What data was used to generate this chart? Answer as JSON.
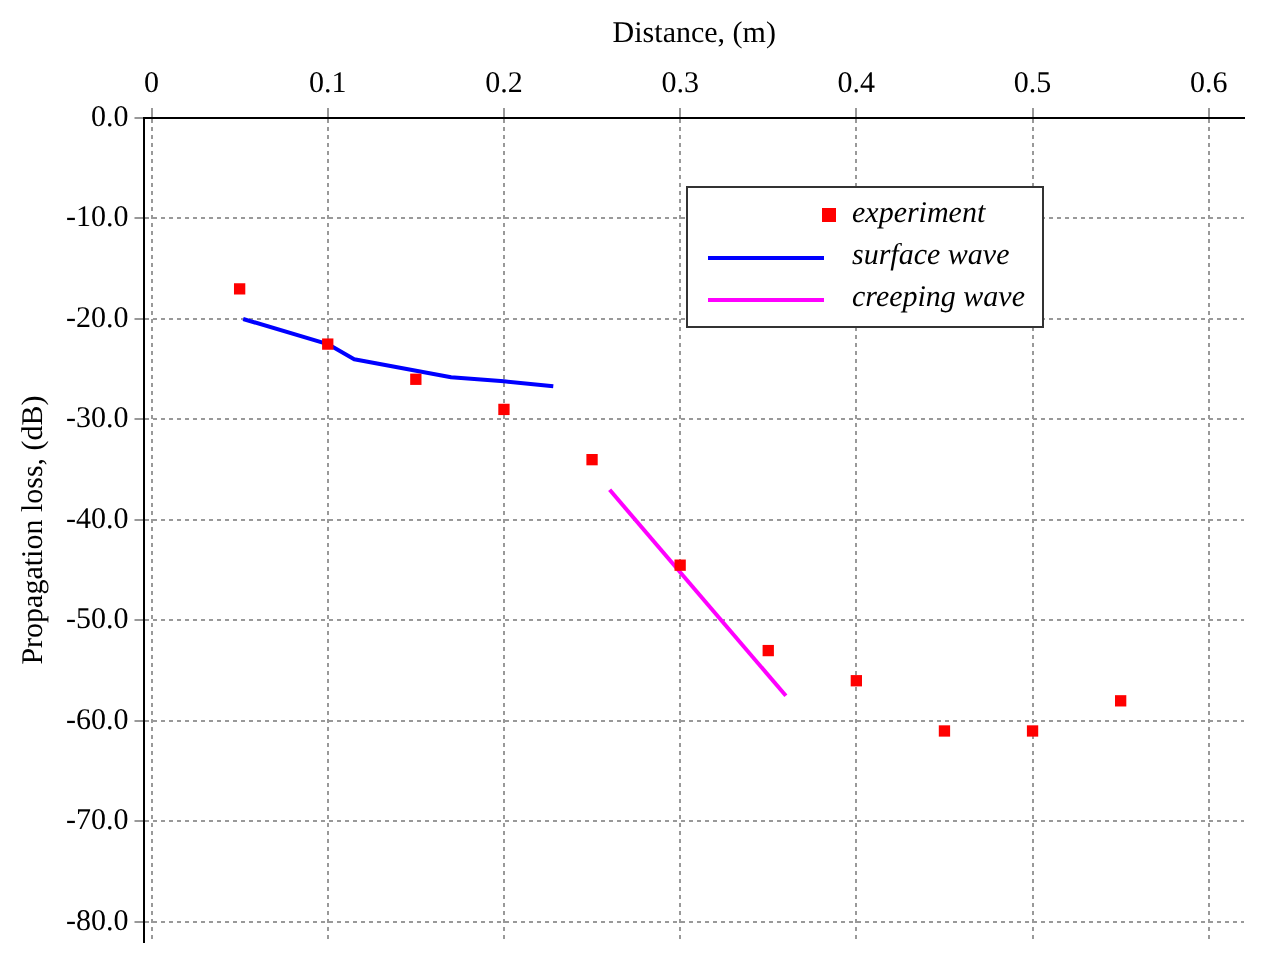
{
  "chart_data": {
    "type": "scatter",
    "xlabel": "Distance, (m)",
    "ylabel": "Propagation loss, (dB)",
    "xlim": [
      -0.004,
      0.62
    ],
    "xticks": [
      0,
      0.1,
      0.2,
      0.3,
      0.4,
      0.5,
      0.6
    ],
    "ylim": [
      -82,
      0
    ],
    "yticks": [
      {
        "value": 0,
        "label": "0.0"
      },
      {
        "value": -10,
        "label": "-10.0"
      },
      {
        "value": -20,
        "label": "-20.0"
      },
      {
        "value": -30,
        "label": "-30.0"
      },
      {
        "value": -40,
        "label": "-40.0"
      },
      {
        "value": -50,
        "label": "-50.0"
      },
      {
        "value": -60,
        "label": "-60.0"
      },
      {
        "value": -70,
        "label": "-70.0"
      },
      {
        "value": -80,
        "label": "-80.0"
      }
    ],
    "grid": true,
    "legend": "top right",
    "series": [
      {
        "name": "experiment",
        "type": "scatter",
        "marker": "square",
        "color": "#ff0000",
        "x": [
          0.05,
          0.1,
          0.15,
          0.2,
          0.25,
          0.3,
          0.35,
          0.4,
          0.45,
          0.5,
          0.55
        ],
        "values": [
          -17,
          -22.5,
          -26,
          -29,
          -34,
          -44.5,
          -53,
          -56,
          -61,
          -61,
          -58
        ]
      },
      {
        "name": "surface wave",
        "type": "line",
        "marker": "none",
        "color": "#0000ff",
        "x": [
          0.052,
          0.1,
          0.115,
          0.17,
          0.2,
          0.228
        ],
        "values": [
          -20,
          -22.5,
          -24,
          -25.8,
          -26.2,
          -26.7
        ]
      },
      {
        "name": "creeping wave",
        "type": "line",
        "marker": "none",
        "color": "#ff00ff",
        "x": [
          0.26,
          0.36
        ],
        "values": [
          -37,
          -57.5
        ]
      }
    ]
  }
}
